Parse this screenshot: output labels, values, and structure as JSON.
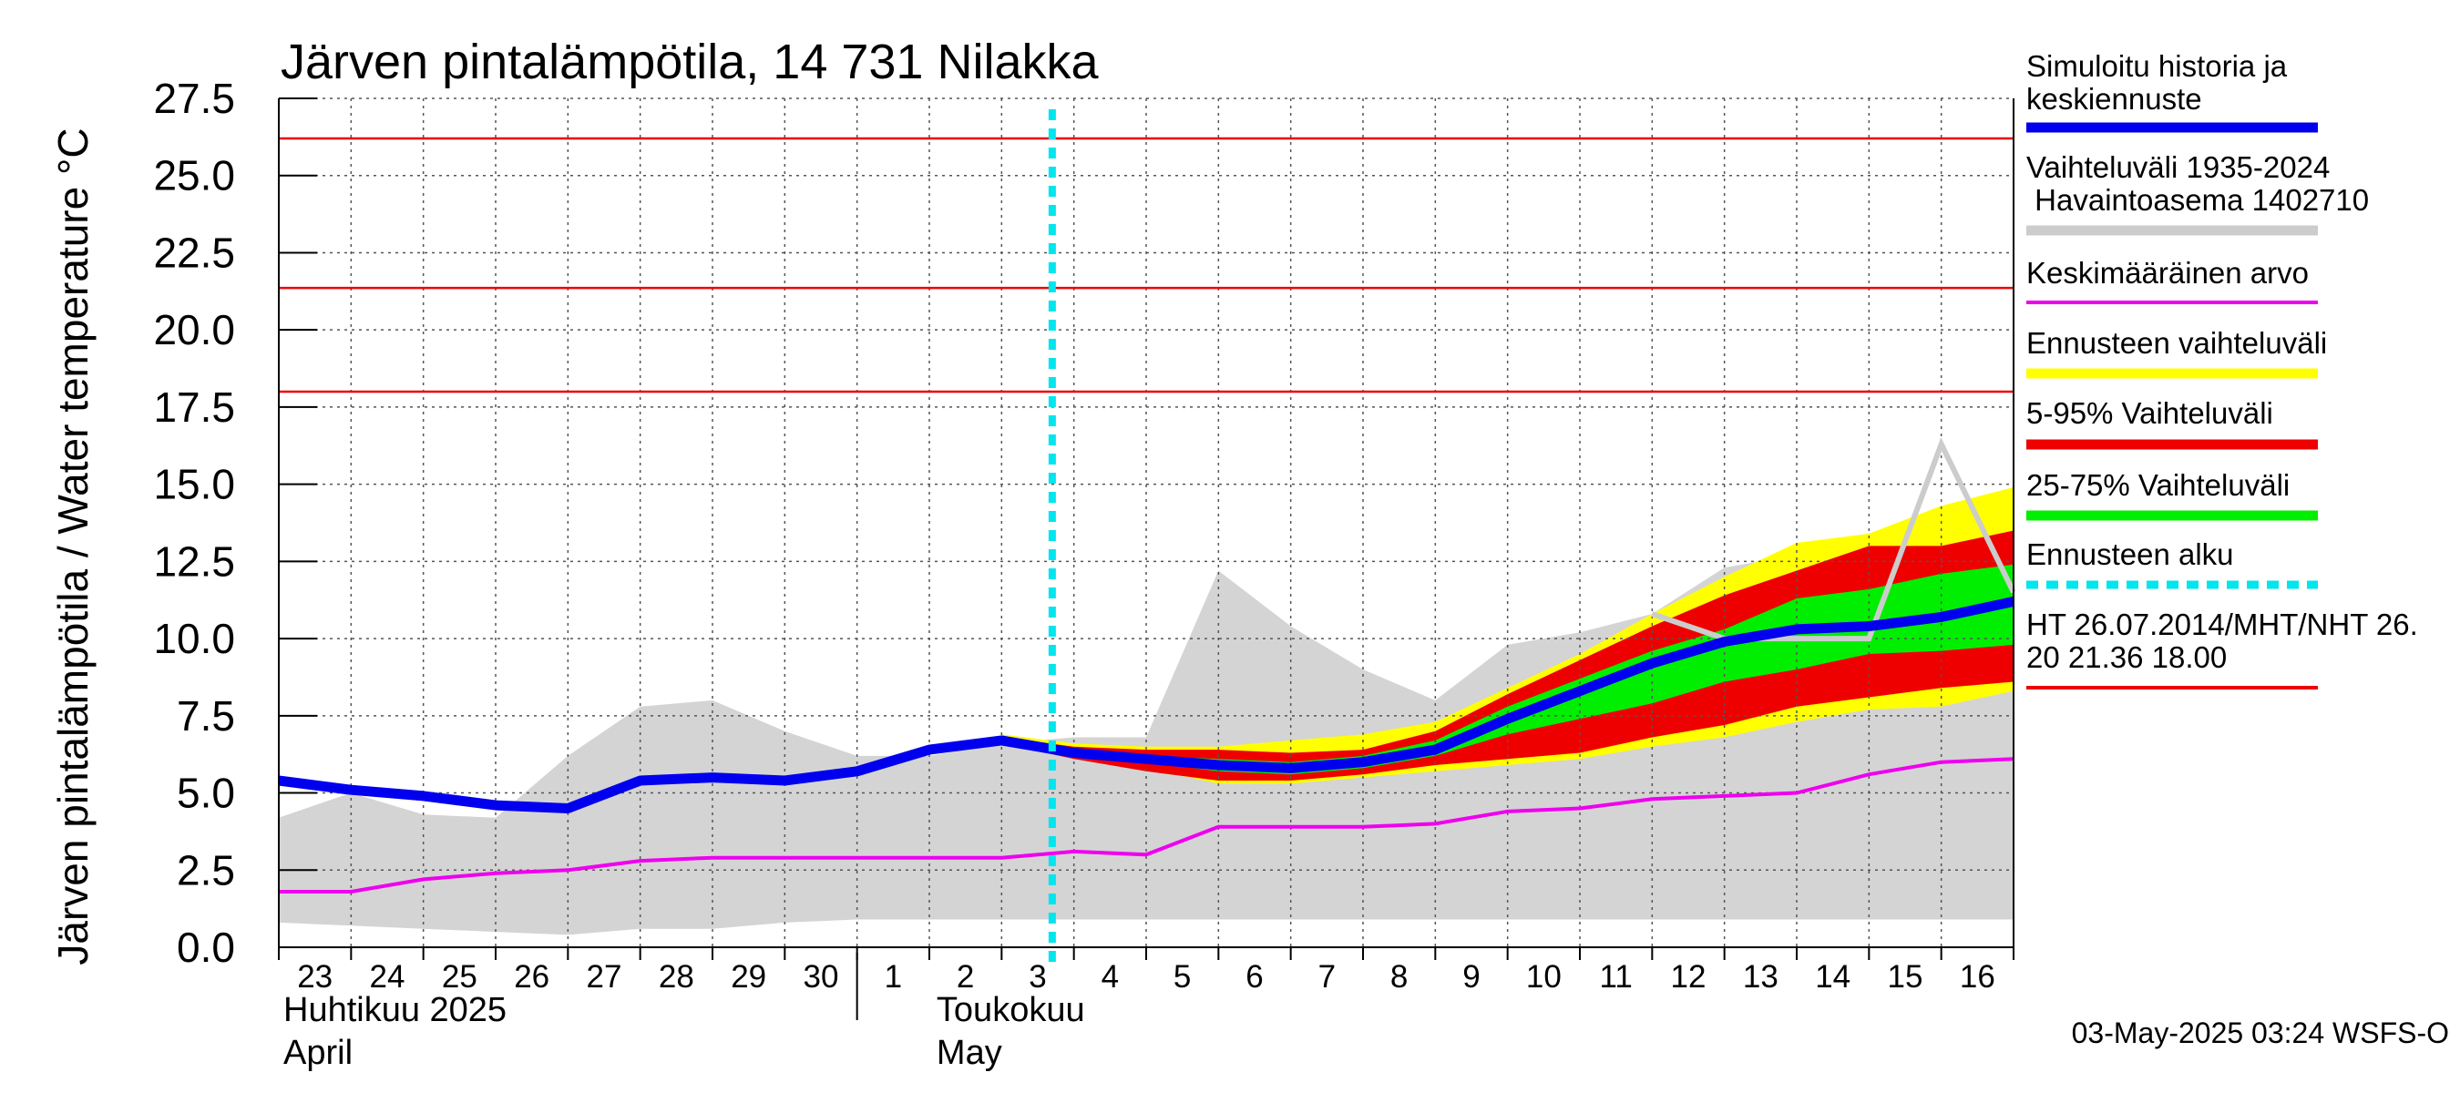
{
  "chart_data": {
    "type": "area",
    "title": "Järven pintalämpötila, 14 731 Nilakka",
    "ylabel": "Järven pintalämpötila / Water temperature °C",
    "xlabel": "",
    "ylim": [
      0,
      27.5
    ],
    "yticks": [
      "0.0",
      "2.5",
      "5.0",
      "7.5",
      "10.0",
      "12.5",
      "15.0",
      "17.5",
      "20.0",
      "22.5",
      "25.0",
      "27.5"
    ],
    "x_days": [
      "23",
      "24",
      "25",
      "26",
      "27",
      "28",
      "29",
      "30",
      "1",
      "2",
      "3",
      "4",
      "5",
      "6",
      "7",
      "8",
      "9",
      "10",
      "11",
      "12",
      "13",
      "14",
      "15",
      "16"
    ],
    "month_labels": [
      {
        "fi": "Huhtikuu  2025",
        "en": "April"
      },
      {
        "fi": "Toukokuu",
        "en": "May"
      }
    ],
    "grid": true,
    "legend_position": "right",
    "forecast_start_day": 10.7,
    "thresholds": [
      26.2,
      21.36,
      18.0
    ],
    "series": [
      {
        "name": "Simuloitu historia ja keskiennuste",
        "color": "#0000ee",
        "x": [
          0,
          1,
          2,
          3,
          4,
          5,
          6,
          7,
          8,
          9,
          10,
          11,
          12,
          13,
          14,
          15,
          16,
          17,
          18,
          19,
          20,
          21,
          22,
          23,
          24
        ],
        "values": [
          5.4,
          5.1,
          4.9,
          4.6,
          4.5,
          5.4,
          5.5,
          5.4,
          5.7,
          6.4,
          6.7,
          6.3,
          6.1,
          5.9,
          5.8,
          6.0,
          6.4,
          7.4,
          8.3,
          9.2,
          9.9,
          10.3,
          10.4,
          10.7,
          11.2
        ]
      },
      {
        "name": "Keskimääräinen arvo",
        "color": "#ee00ee",
        "x": [
          0,
          1,
          2,
          3,
          4,
          5,
          6,
          7,
          8,
          9,
          10,
          11,
          12,
          13,
          14,
          15,
          16,
          17,
          18,
          19,
          20,
          21,
          22,
          23,
          24
        ],
        "values": [
          1.8,
          1.8,
          2.2,
          2.4,
          2.5,
          2.8,
          2.9,
          2.9,
          2.9,
          2.9,
          2.9,
          3.1,
          3.0,
          3.9,
          3.9,
          3.9,
          4.0,
          4.4,
          4.5,
          4.8,
          4.9,
          5.0,
          5.6,
          6.0,
          6.1
        ]
      },
      {
        "name": "HT 26.07.2014/MHT/NHT 26.20 21.36 18.00",
        "color": "#ee0000",
        "values": [
          26.2,
          21.36,
          18.0
        ]
      },
      {
        "name": "Havaintoasema 1402710",
        "color": "#cccccc",
        "x": [
          19,
          20,
          21,
          22,
          23,
          24
        ],
        "values": [
          10.8,
          10.0,
          10.0,
          10.0,
          16.3,
          11.5
        ]
      }
    ],
    "bands": [
      {
        "name": "Vaihteluväli 1935-2024",
        "color": "#d4d4d4",
        "x": [
          0,
          1,
          2,
          3,
          4,
          5,
          6,
          7,
          8,
          9,
          10,
          11,
          12,
          13,
          14,
          15,
          16,
          17,
          18,
          19,
          20,
          21,
          22,
          23,
          24
        ],
        "lower": [
          0.8,
          0.7,
          0.6,
          0.5,
          0.4,
          0.6,
          0.6,
          0.8,
          0.9,
          0.9,
          0.9,
          0.9,
          0.9,
          0.9,
          0.9,
          0.9,
          0.9,
          0.9,
          0.9,
          0.9,
          0.9,
          0.9,
          0.9,
          0.9,
          0.9
        ],
        "upper": [
          4.2,
          5.0,
          4.3,
          4.2,
          6.2,
          7.8,
          8.0,
          7.0,
          6.2,
          6.2,
          6.6,
          6.8,
          6.8,
          12.2,
          10.4,
          9.0,
          8.0,
          9.8,
          10.2,
          10.8,
          12.3,
          12.7,
          12.9,
          13.2,
          14.0
        ]
      },
      {
        "name": "Ennusteen vaihteluväli",
        "color": "#ffff00",
        "x": [
          10,
          11,
          12,
          13,
          14,
          15,
          16,
          17,
          18,
          19,
          20,
          21,
          22,
          23,
          24
        ],
        "lower": [
          6.7,
          6.2,
          5.8,
          5.3,
          5.3,
          5.5,
          5.7,
          5.9,
          6.1,
          6.5,
          6.8,
          7.3,
          7.7,
          7.8,
          8.3
        ],
        "upper": [
          6.9,
          6.6,
          6.5,
          6.5,
          6.7,
          6.9,
          7.3,
          8.4,
          9.5,
          10.8,
          12.0,
          13.1,
          13.4,
          14.3,
          14.9
        ]
      },
      {
        "name": "5-95% Vaihteluväli",
        "color": "#ee0000",
        "x": [
          10,
          11,
          12,
          13,
          14,
          15,
          16,
          17,
          18,
          19,
          20,
          21,
          22,
          23,
          24
        ],
        "lower": [
          6.6,
          6.1,
          5.7,
          5.4,
          5.4,
          5.6,
          5.9,
          6.1,
          6.3,
          6.8,
          7.2,
          7.8,
          8.1,
          8.4,
          8.6
        ],
        "upper": [
          6.8,
          6.5,
          6.4,
          6.4,
          6.3,
          6.4,
          7.0,
          8.2,
          9.3,
          10.4,
          11.4,
          12.2,
          13.0,
          13.0,
          13.5
        ]
      },
      {
        "name": "25-75% Vaihteluväli",
        "color": "#00ee00",
        "x": [
          10,
          11,
          12,
          13,
          14,
          15,
          16,
          17,
          18,
          19,
          20,
          21,
          22,
          23,
          24
        ],
        "lower": [
          6.7,
          6.2,
          6.0,
          5.7,
          5.6,
          5.8,
          6.2,
          6.9,
          7.4,
          7.9,
          8.6,
          9.0,
          9.5,
          9.6,
          9.8
        ],
        "upper": [
          6.7,
          6.4,
          6.2,
          6.1,
          6.0,
          6.2,
          6.7,
          7.8,
          8.7,
          9.6,
          10.3,
          11.3,
          11.6,
          12.1,
          12.4
        ]
      }
    ],
    "legend": [
      {
        "label": "Simuloitu historia ja\nkeskiennuste",
        "color": "#0000ee",
        "style": "thick"
      },
      {
        "label": "Vaihteluväli 1935-2024\n Havaintoasema 1402710",
        "color": "#cccccc",
        "style": "thick"
      },
      {
        "label": "Keskimääräinen arvo",
        "color": "#ee00ee",
        "style": "thin"
      },
      {
        "label": "Ennusteen vaihteluväli",
        "color": "#ffff00",
        "style": "thick"
      },
      {
        "label": "5-95% Vaihteluväli",
        "color": "#ee0000",
        "style": "thick"
      },
      {
        "label": "25-75% Vaihteluväli",
        "color": "#00ee00",
        "style": "thick"
      },
      {
        "label": "Ennusteen alku",
        "color": "#00e5ee",
        "style": "dashed"
      },
      {
        "label": "HT 26.07.2014/MHT/NHT 26.\n20 21.36 18.00",
        "color": "#ee0000",
        "style": "thin"
      }
    ]
  },
  "footer": "03-May-2025 03:24 WSFS-O"
}
